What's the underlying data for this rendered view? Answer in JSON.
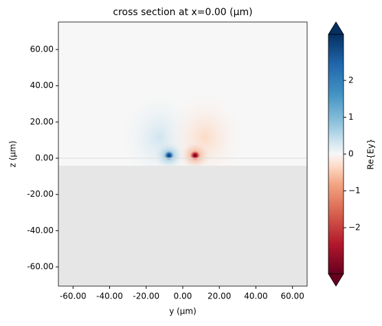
{
  "chart_data": {
    "type": "heatmap",
    "title": "cross section at x=0.00 (μm)",
    "xlabel": "y (μm)",
    "ylabel": "z (μm)",
    "xlim": [
      -68,
      68
    ],
    "ylim": [
      -70.6,
      75.2
    ],
    "xticks": [
      {
        "value": -60,
        "label": "-60.00"
      },
      {
        "value": -40,
        "label": "-40.00"
      },
      {
        "value": -20,
        "label": "-20.00"
      },
      {
        "value": 0,
        "label": "0.00"
      },
      {
        "value": 20,
        "label": "20.00"
      },
      {
        "value": 40,
        "label": "40.00"
      },
      {
        "value": 60,
        "label": "60.00"
      }
    ],
    "yticks": [
      {
        "value": -60,
        "label": "-60.00"
      },
      {
        "value": -40,
        "label": "-40.00"
      },
      {
        "value": -20,
        "label": "-20.00"
      },
      {
        "value": 0,
        "label": "0.00"
      },
      {
        "value": 20,
        "label": "20.00"
      },
      {
        "value": 40,
        "label": "40.00"
      },
      {
        "value": 60,
        "label": "60.00"
      }
    ],
    "colorbar": {
      "label": "Re{Ey}",
      "colormap": "RdBu_r",
      "clim": [
        -3.25,
        3.25
      ],
      "ticks": [
        {
          "value": -2,
          "label": "−2"
        },
        {
          "value": -1,
          "label": "−1"
        },
        0,
        1,
        2
      ]
    }
  }
}
